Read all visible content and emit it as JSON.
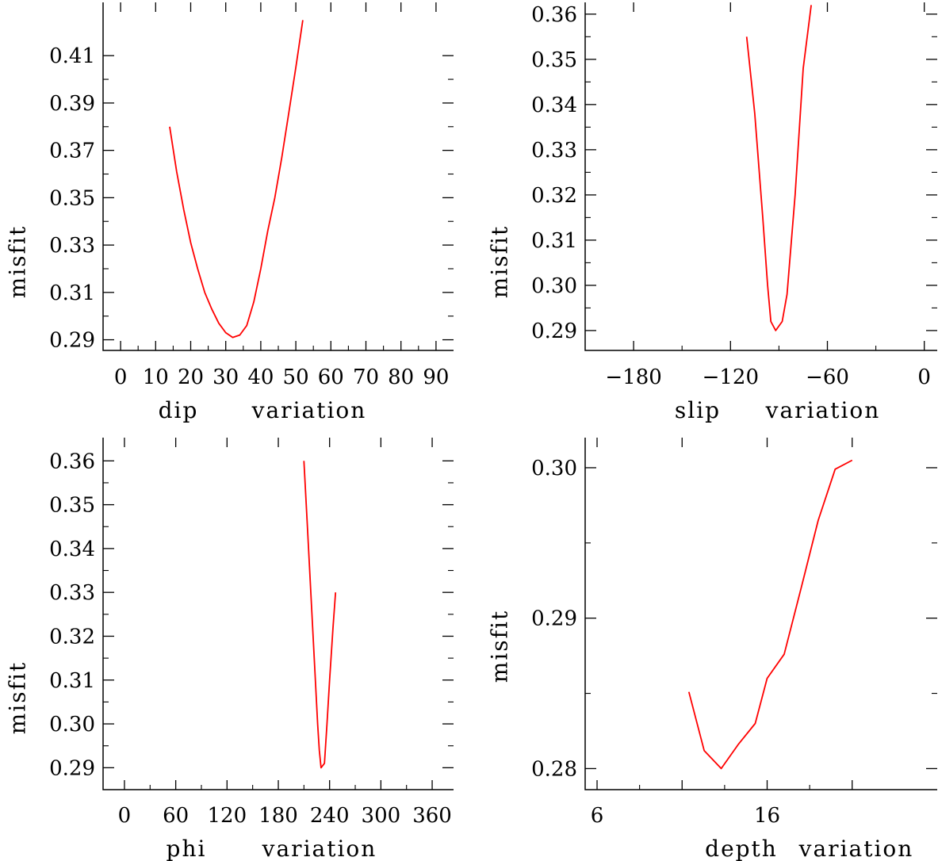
{
  "chart_data": [
    {
      "type": "line",
      "xlabel_parts": [
        "dip",
        "variation"
      ],
      "ylabel": "misfit",
      "xlim": [
        -5,
        95
      ],
      "ylim": [
        0.2855,
        0.4325
      ],
      "x_ticks": [
        0,
        10,
        20,
        30,
        40,
        50,
        60,
        70,
        80,
        90
      ],
      "x_tick_labels": [
        "0",
        "10",
        "20",
        "30",
        "40",
        "50",
        "60",
        "70",
        "80",
        "90"
      ],
      "y_ticks": [
        0.29,
        0.31,
        0.33,
        0.35,
        0.37,
        0.39,
        0.41
      ],
      "y_tick_labels": [
        "0.29",
        "0.31",
        "0.33",
        "0.35",
        "0.37",
        "0.39",
        "0.41"
      ],
      "series": [
        {
          "color": "#ff0000",
          "x": [
            14,
            16,
            18,
            20,
            22,
            24,
            26,
            28,
            30,
            32,
            34,
            36,
            38,
            40,
            42,
            44,
            46,
            48,
            50,
            52
          ],
          "y": [
            0.38,
            0.361,
            0.345,
            0.331,
            0.32,
            0.31,
            0.303,
            0.297,
            0.293,
            0.291,
            0.292,
            0.296,
            0.306,
            0.32,
            0.336,
            0.35,
            0.367,
            0.386,
            0.405,
            0.425
          ]
        }
      ]
    },
    {
      "type": "line",
      "xlabel_parts": [
        "slip",
        "variation"
      ],
      "ylabel": "misfit",
      "xlim": [
        -210,
        8
      ],
      "ylim": [
        0.2856,
        0.3626
      ],
      "x_ticks": [
        -180,
        -120,
        -60,
        0
      ],
      "x_tick_labels": [
        "−180",
        "−120",
        "−60",
        "0"
      ],
      "y_ticks": [
        0.29,
        0.3,
        0.31,
        0.32,
        0.33,
        0.34,
        0.35,
        0.36
      ],
      "y_tick_labels": [
        "0.29",
        "0.30",
        "0.31",
        "0.32",
        "0.33",
        "0.34",
        "0.35",
        "0.36"
      ],
      "series": [
        {
          "color": "#ff0000",
          "x": [
            -110,
            -105,
            -100,
            -97,
            -95,
            -92,
            -88,
            -85,
            -80,
            -75,
            -70
          ],
          "y": [
            0.355,
            0.338,
            0.315,
            0.3,
            0.292,
            0.29,
            0.292,
            0.298,
            0.32,
            0.348,
            0.362
          ]
        }
      ]
    },
    {
      "type": "line",
      "xlabel_parts": [
        "phi",
        "variation"
      ],
      "ylabel": "misfit",
      "xlim": [
        -25,
        385
      ],
      "ylim": [
        0.285,
        0.3653
      ],
      "x_ticks": [
        0,
        60,
        120,
        180,
        240,
        300,
        360
      ],
      "x_tick_labels": [
        "0",
        "60",
        "120",
        "180",
        "240",
        "300",
        "360"
      ],
      "y_ticks": [
        0.29,
        0.3,
        0.31,
        0.32,
        0.33,
        0.34,
        0.35,
        0.36
      ],
      "y_tick_labels": [
        "0.29",
        "0.30",
        "0.31",
        "0.32",
        "0.33",
        "0.34",
        "0.35",
        "0.36"
      ],
      "series": [
        {
          "color": "#ff0000",
          "x": [
            210,
            214,
            218,
            222,
            226,
            228,
            230,
            234,
            237,
            240,
            244,
            247
          ],
          "y": [
            0.36,
            0.345,
            0.33,
            0.315,
            0.3,
            0.294,
            0.29,
            0.291,
            0.3,
            0.31,
            0.322,
            0.33
          ]
        }
      ]
    },
    {
      "type": "line",
      "xlabel_parts": [
        "depth",
        "variation"
      ],
      "ylabel": "misfit",
      "xlim": [
        5.3,
        26
      ],
      "ylim": [
        0.2786,
        0.302
      ],
      "x_ticks": [
        6,
        16
      ],
      "x_tick_labels": [
        "6",
        "16"
      ],
      "x_ticks_unlabeled": [
        11,
        21
      ],
      "y_ticks": [
        0.28,
        0.29,
        0.3
      ],
      "y_tick_labels": [
        "0.28",
        "0.29",
        "0.30"
      ],
      "series": [
        {
          "color": "#ff0000",
          "x": [
            11.4,
            12.3,
            13.3,
            14.3,
            15.3,
            16.0,
            17.0,
            18.0,
            19.0,
            20.0,
            21.0
          ],
          "y": [
            0.2851,
            0.2812,
            0.28,
            0.2816,
            0.283,
            0.286,
            0.2876,
            0.292,
            0.2965,
            0.2999,
            0.3005
          ]
        }
      ]
    }
  ]
}
